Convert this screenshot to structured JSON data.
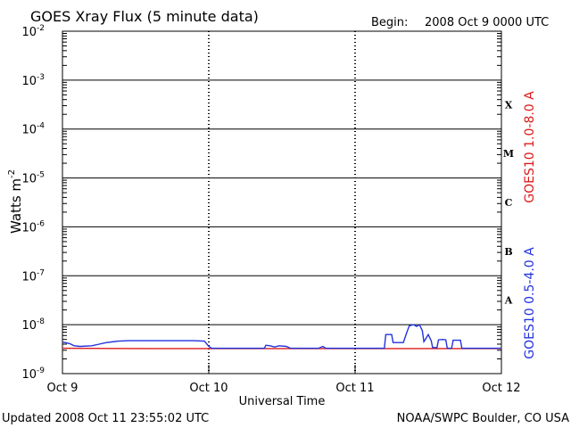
{
  "header": {
    "title": "GOES Xray Flux (5 minute data)",
    "begin_label": "Begin:",
    "begin_value": "2008 Oct 9 0000 UTC"
  },
  "footer": {
    "updated": "Updated 2008 Oct 11 23:55:02 UTC",
    "credit": "NOAA/SWPC Boulder, CO USA"
  },
  "chart_data": {
    "type": "line",
    "title": "GOES Xray Flux (5 minute data)",
    "xlabel": "Universal Time",
    "ylabel": "Watts m",
    "ylabel_superscript": "-2",
    "y_scale": "log",
    "ylim": [
      1e-09,
      0.01
    ],
    "xlim_days": [
      0,
      3
    ],
    "x_ticks": [
      "Oct 9",
      "Oct 10",
      "Oct 11",
      "Oct 12"
    ],
    "y_ticks": [
      {
        "mantissa": "10",
        "exp": "-9",
        "v": -9
      },
      {
        "mantissa": "10",
        "exp": "-8",
        "v": -8
      },
      {
        "mantissa": "10",
        "exp": "-7",
        "v": -7
      },
      {
        "mantissa": "10",
        "exp": "-6",
        "v": -6
      },
      {
        "mantissa": "10",
        "exp": "-5",
        "v": -5
      },
      {
        "mantissa": "10",
        "exp": "-4",
        "v": -4
      },
      {
        "mantissa": "10",
        "exp": "-3",
        "v": -3
      },
      {
        "mantissa": "10",
        "exp": "-2",
        "v": -2
      }
    ],
    "flare_classes": [
      {
        "label": "A",
        "v": -7.5
      },
      {
        "label": "B",
        "v": -6.5
      },
      {
        "label": "C",
        "v": -5.5
      },
      {
        "label": "M",
        "v": -4.5
      },
      {
        "label": "X",
        "v": -3.5
      }
    ],
    "grid": true,
    "series": [
      {
        "name": "GOES10 1.0-8.0 A",
        "color": "#dd1a1a",
        "points": [
          [
            0.0,
            3.3e-09
          ],
          [
            0.6,
            3.25e-09
          ],
          [
            1.0,
            3.25e-09
          ],
          [
            1.5,
            3.25e-09
          ],
          [
            2.0,
            3.25e-09
          ],
          [
            2.5,
            3.25e-09
          ],
          [
            3.0,
            3.25e-09
          ]
        ]
      },
      {
        "name": "GOES10 0.5-4.0 A",
        "color": "#2233dd",
        "points": [
          [
            0.0,
            4.4e-09
          ],
          [
            0.02,
            4.3e-09
          ],
          [
            0.05,
            4.1e-09
          ],
          [
            0.08,
            3.7e-09
          ],
          [
            0.12,
            3.6e-09
          ],
          [
            0.2,
            3.7e-09
          ],
          [
            0.25,
            4e-09
          ],
          [
            0.3,
            4.3e-09
          ],
          [
            0.38,
            4.6e-09
          ],
          [
            0.45,
            4.7e-09
          ],
          [
            0.6,
            4.7e-09
          ],
          [
            0.75,
            4.7e-09
          ],
          [
            0.9,
            4.7e-09
          ],
          [
            0.97,
            4.6e-09
          ],
          [
            1.0,
            3.6e-09
          ],
          [
            1.02,
            3.3e-09
          ],
          [
            1.2,
            3.3e-09
          ],
          [
            1.38,
            3.3e-09
          ],
          [
            1.39,
            3.8e-09
          ],
          [
            1.42,
            3.7e-09
          ],
          [
            1.45,
            3.5e-09
          ],
          [
            1.48,
            3.7e-09
          ],
          [
            1.53,
            3.6e-09
          ],
          [
            1.56,
            3.3e-09
          ],
          [
            1.75,
            3.3e-09
          ],
          [
            1.78,
            3.6e-09
          ],
          [
            1.8,
            3.3e-09
          ],
          [
            2.0,
            3.3e-09
          ],
          [
            2.2,
            3.3e-09
          ],
          [
            2.21,
            6.3e-09
          ],
          [
            2.25,
            6.3e-09
          ],
          [
            2.26,
            4.3e-09
          ],
          [
            2.33,
            4.3e-09
          ],
          [
            2.35,
            6.5e-09
          ],
          [
            2.37,
            9.5e-09
          ],
          [
            2.4,
            1e-08
          ],
          [
            2.42,
            9.2e-09
          ],
          [
            2.44,
            1e-08
          ],
          [
            2.46,
            7.5e-09
          ],
          [
            2.47,
            4.5e-09
          ],
          [
            2.48,
            5e-09
          ],
          [
            2.5,
            6.3e-09
          ],
          [
            2.52,
            4.7e-09
          ],
          [
            2.53,
            3.4e-09
          ],
          [
            2.56,
            3.4e-09
          ],
          [
            2.57,
            4.9e-09
          ],
          [
            2.6,
            5e-09
          ],
          [
            2.62,
            4.9e-09
          ],
          [
            2.63,
            3.3e-09
          ],
          [
            2.66,
            3.3e-09
          ],
          [
            2.67,
            4.8e-09
          ],
          [
            2.72,
            4.8e-09
          ],
          [
            2.73,
            3.3e-09
          ],
          [
            3.0,
            3.3e-09
          ]
        ]
      }
    ]
  }
}
